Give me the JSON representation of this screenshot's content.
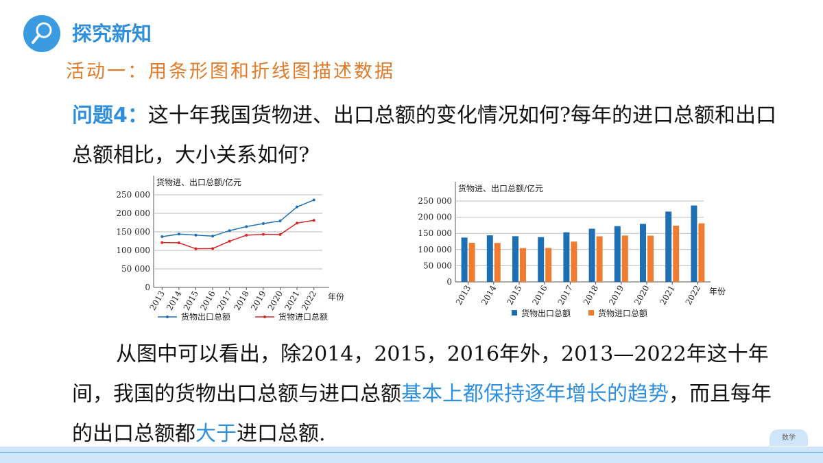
{
  "header": {
    "icon": "magnifier-icon",
    "title": "探究新知"
  },
  "activity": "活动一：用条形图和折线图描述数据",
  "question": {
    "label": "问题4：",
    "text": "这十年我国货物进、出口总额的变化情况如何?每年的进口总额和出口总额相比，大小关系如何?"
  },
  "answer": {
    "part1": "从图中可以看出，除2014，2015，2016年外，2013—2022年这十年间，我国的货物出口总额与进口总额",
    "highlight1": "基本上都保持逐年增长的趋势",
    "part2": "，而且每年的出口总额都",
    "highlight2": "大于",
    "part3": "进口总额."
  },
  "footer": {
    "badge": "数学"
  },
  "colors": {
    "export_line": "#1f6fb4",
    "import_line": "#d62728",
    "export_bar": "#1f6fb4",
    "import_bar": "#ee7d31",
    "accent": "#2f8fdc",
    "activity": "#e07b2a"
  },
  "chart_data": [
    {
      "type": "line",
      "ylabel": "货物进、出口总额/亿元",
      "xlabel": "年份",
      "categories": [
        "2013",
        "2014",
        "2015",
        "2016",
        "2017",
        "2018",
        "2019",
        "2020",
        "2021",
        "2022"
      ],
      "yticks": [
        "0",
        "50 000",
        "100 000",
        "150 000",
        "200 000",
        "250 000"
      ],
      "ylim": [
        0,
        250000
      ],
      "series": [
        {
          "name": "货物出口总额",
          "values": [
            137000,
            143900,
            141200,
            138400,
            153300,
            164200,
            172300,
            179300,
            217300,
            236000
          ]
        },
        {
          "name": "货物进口总额",
          "values": [
            121000,
            120400,
            104300,
            104900,
            124600,
            140900,
            143300,
            142900,
            173700,
            181000
          ]
        }
      ],
      "legend": "bottom"
    },
    {
      "type": "bar",
      "ylabel": "货物进、出口总额/亿元",
      "xlabel": "年份",
      "categories": [
        "2013",
        "2014",
        "2015",
        "2016",
        "2017",
        "2018",
        "2019",
        "2020",
        "2021",
        "2022"
      ],
      "yticks": [
        "0",
        "50 000",
        "100 000",
        "150 000",
        "200 000",
        "250 000"
      ],
      "ylim": [
        0,
        250000
      ],
      "series": [
        {
          "name": "货物出口总额",
          "values": [
            137000,
            143900,
            141200,
            138400,
            153300,
            164200,
            172300,
            179300,
            217300,
            236000
          ]
        },
        {
          "name": "货物进口总额",
          "values": [
            121000,
            120400,
            104300,
            104900,
            124600,
            140900,
            143300,
            142900,
            173700,
            181000
          ]
        }
      ],
      "legend": "bottom"
    }
  ]
}
